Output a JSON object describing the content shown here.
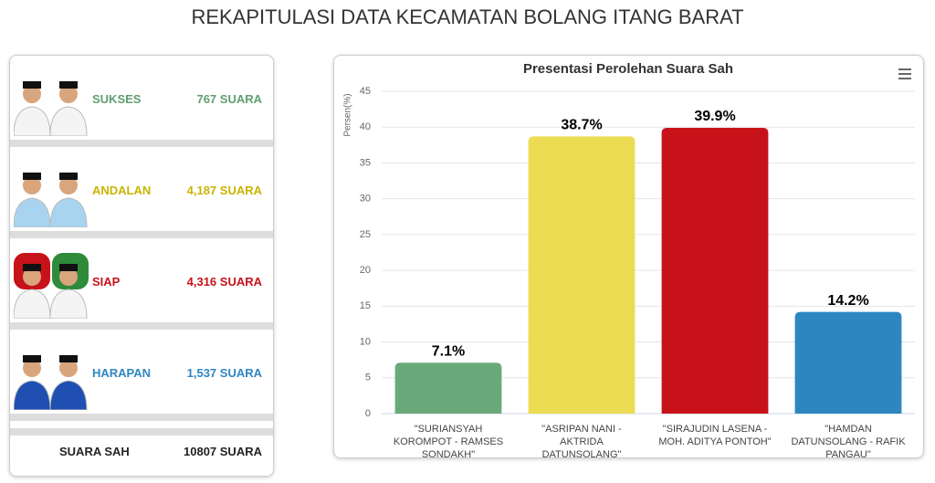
{
  "header": {
    "title": "REKAPITULASI DATA KECAMATAN BOLANG ITANG BARAT"
  },
  "candidates": [
    {
      "name": "SUKSES",
      "votes": "767 SUARA",
      "color": "#5f9e6e"
    },
    {
      "name": "ANDALAN",
      "votes": "4,187 SUARA",
      "color": "#c9b400"
    },
    {
      "name": "SIAP",
      "votes": "4,316 SUARA",
      "color": "#c8121a"
    },
    {
      "name": "HARAPAN",
      "votes": "1,537 SUARA",
      "color": "#2e86c1"
    }
  ],
  "total": {
    "label": "SUARA SAH",
    "value": "10807 SUARA"
  },
  "chart_data": {
    "type": "bar",
    "title": "Presentasi Perolehan Suara Sah",
    "y_label": "Persen(%)",
    "categories": [
      "\"SURIANSYAH KOROMPOT - RAMSES SONDAKH\"",
      "\"ASRIPAN NANI - AKTRIDA DATUNSOLANG\"",
      "\"SIRAJUDIN LASENA - MOH. ADITYA PONTOH\"",
      "\"HAMDAN DATUNSOLANG - RAFIK PANGAU\""
    ],
    "values": [
      7.1,
      38.7,
      39.9,
      14.2
    ],
    "value_labels": [
      "7.1%",
      "38.7%",
      "39.9%",
      "14.2%"
    ],
    "colors": [
      "#6aaa7a",
      "#ecdc54",
      "#c8121a",
      "#2e86c1"
    ],
    "ylim": [
      0,
      45
    ],
    "yticks": [
      0,
      5,
      10,
      15,
      20,
      25,
      30,
      35,
      40,
      45
    ],
    "grid": true
  }
}
